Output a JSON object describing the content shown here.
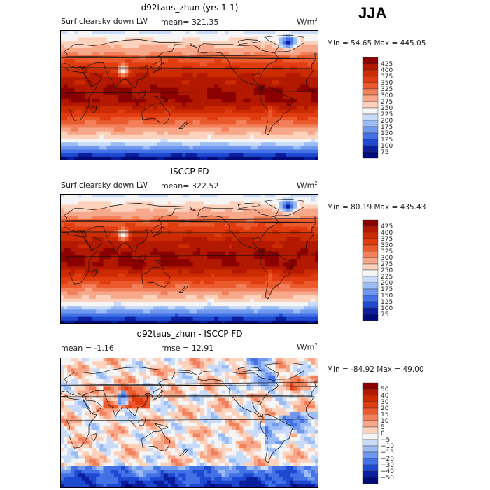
{
  "season_label": "JJA",
  "chart_data": [
    {
      "type": "heatmap",
      "title": "d92taus_zhun (yrs 1-1)",
      "left_label": "Surf clearsky down LW",
      "stat_label": "mean= 321.35",
      "units": "W/m",
      "units_exp": "2",
      "minmax_label": "Min =  54.65 Max = 445.05",
      "colorbar_levels": [
        "425",
        "400",
        "375",
        "350",
        "325",
        "300",
        "275",
        "250",
        "225",
        "200",
        "175",
        "150",
        "125",
        "100",
        "75"
      ],
      "colorbar_colors": [
        "#8b0000",
        "#b31800",
        "#cc2a00",
        "#e03c10",
        "#ea5a2c",
        "#f2805a",
        "#f8a88a",
        "#fcd2bd",
        "#f5f5f5",
        "#c8dcfa",
        "#9cbcf5",
        "#7098ee",
        "#4272e6",
        "#1e4ad2",
        "#0a1e9e",
        "#000a78"
      ],
      "field": "absolute",
      "mean": 321.35,
      "min": 54.65,
      "max": 445.05
    },
    {
      "type": "heatmap",
      "title": "ISCCP FD",
      "left_label": "Surf clearsky down LW",
      "stat_label": "mean= 322.52",
      "units": "W/m",
      "units_exp": "2",
      "minmax_label": "Min =  80.19 Max = 435.43",
      "colorbar_levels": [
        "425",
        "400",
        "375",
        "350",
        "325",
        "300",
        "275",
        "250",
        "225",
        "200",
        "175",
        "150",
        "125",
        "100",
        "75"
      ],
      "colorbar_colors": [
        "#8b0000",
        "#b31800",
        "#cc2a00",
        "#e03c10",
        "#ea5a2c",
        "#f2805a",
        "#f8a88a",
        "#fcd2bd",
        "#f5f5f5",
        "#c8dcfa",
        "#9cbcf5",
        "#7098ee",
        "#4272e6",
        "#1e4ad2",
        "#0a1e9e",
        "#000a78"
      ],
      "field": "absolute",
      "mean": 322.52,
      "min": 80.19,
      "max": 435.43
    },
    {
      "type": "heatmap",
      "title": "d92taus_zhun - ISCCP FD",
      "left_label": "mean =   -1.16",
      "stat_label": "rmse =  12.91",
      "units": "W/m",
      "units_exp": "2",
      "minmax_label": "Min = -84.92 Max =   49.00",
      "colorbar_levels": [
        "50",
        "40",
        "30",
        "20",
        "15",
        "10",
        "5",
        "0",
        "−5",
        "−10",
        "−15",
        "−20",
        "−30",
        "−40",
        "−50"
      ],
      "colorbar_colors": [
        "#8b0000",
        "#b31800",
        "#cc2a00",
        "#e03c10",
        "#ea5a2c",
        "#f2805a",
        "#f8a88a",
        "#fcd2bd",
        "#f5f5f5",
        "#c8dcfa",
        "#9cbcf5",
        "#7098ee",
        "#4272e6",
        "#1e4ad2",
        "#0a1e9e",
        "#000a78"
      ],
      "field": "difference",
      "mean": -1.16,
      "rmse": 12.91,
      "min": -84.92,
      "max": 49.0
    }
  ]
}
